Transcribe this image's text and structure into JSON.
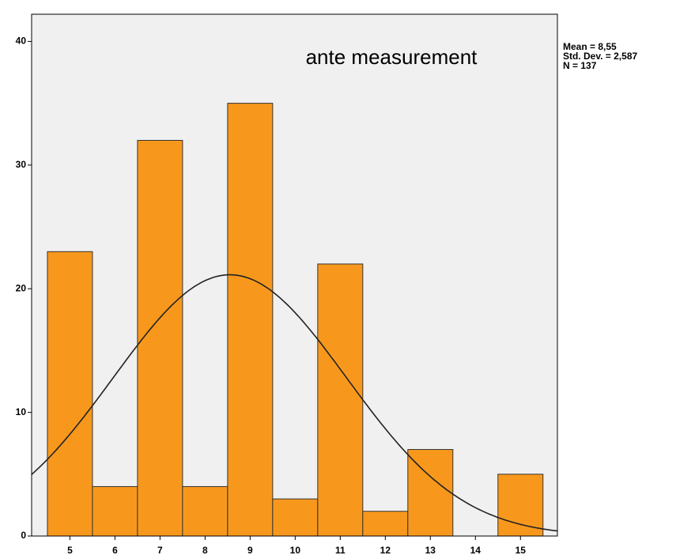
{
  "chart_data": {
    "type": "histogram",
    "title": "ante measurement",
    "bins": [
      4.5,
      5.5,
      6.5,
      7.5,
      8.5,
      9.5,
      10.5,
      11.5,
      12.5,
      13.5,
      14.5,
      15.5
    ],
    "counts": [
      23,
      4,
      32,
      4,
      35,
      3,
      22,
      2,
      7,
      0,
      5
    ],
    "color": "#f7981d",
    "xlim": [
      4.15,
      15.82
    ],
    "xticks": [
      5,
      6,
      7,
      8,
      9,
      10,
      11,
      12,
      13,
      14,
      15
    ],
    "ylim": [
      0,
      42.2
    ],
    "yticks": [
      0,
      10,
      20,
      30,
      40
    ],
    "normal_curve": {
      "mean": 8.55,
      "sd": 2.587,
      "n": 137
    },
    "stats_labels": [
      "Mean = 8,55",
      "Std. Dev. = 2,587",
      "N = 137"
    ]
  }
}
